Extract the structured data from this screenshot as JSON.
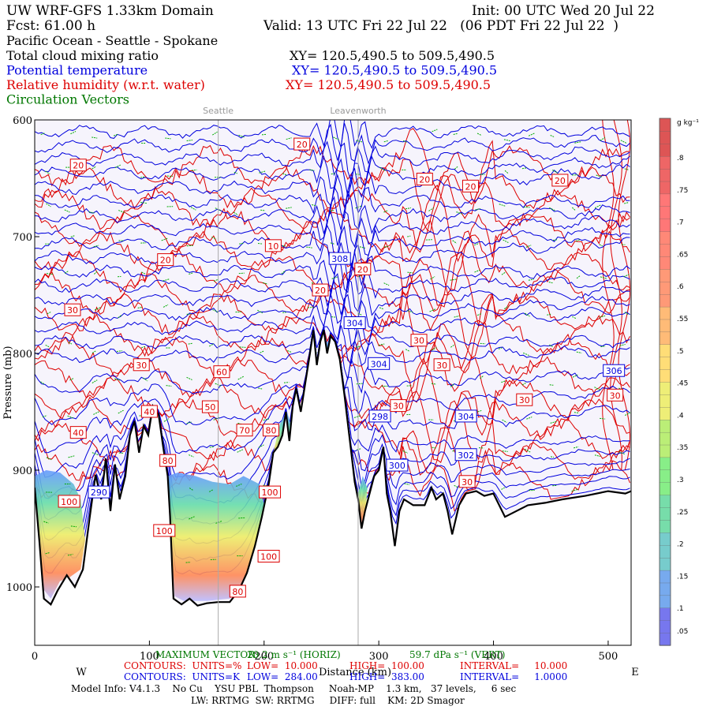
{
  "header": {
    "model": "UW WRF-GFS 1.33km Domain",
    "init": "Init: 00 UTC Wed 20 Jul 22",
    "fcst": "Fcst:   61.00 h",
    "valid": "Valid: 13 UTC Fri 22 Jul 22   (06 PDT Fri 22 Jul 22  )",
    "region": "Pacific Ocean - Seattle - Spokane",
    "fields": [
      {
        "name": "Total cloud mixing ratio",
        "xy": "XY= 120.5,490.5 to 509.5,490.5",
        "color": "#000000"
      },
      {
        "name": "Potential temperature",
        "xy": "XY= 120.5,490.5 to 509.5,490.5",
        "color": "#0000dd"
      },
      {
        "name": "Relative humidity (w.r.t. water)",
        "xy": "XY= 120.5,490.5 to 509.5,490.5",
        "color": "#dd0000"
      },
      {
        "name": "Circulation Vectors",
        "xy": "",
        "color": "#007700"
      }
    ]
  },
  "places": [
    {
      "name": "Seattle",
      "km": 160
    },
    {
      "name": "Leavenworth",
      "km": 282
    }
  ],
  "chart_data": {
    "type": "contour",
    "xlabel": "Distance (km)",
    "ylabel": "Pressure (mb)",
    "xlim": [
      0,
      520
    ],
    "ylim": [
      1050,
      600
    ],
    "x_ticks": [
      0,
      100,
      200,
      300,
      400,
      500
    ],
    "y_ticks": [
      600,
      700,
      800,
      900,
      1000
    ],
    "x_end_labels": {
      "left": "W",
      "right": "E"
    },
    "colorbar": {
      "unit": "g kg⁻¹",
      "ticks": [
        ".05",
        ".1",
        ".15",
        ".2",
        ".25",
        ".3",
        ".35",
        ".4",
        ".45",
        ".5",
        ".55",
        ".6",
        ".65",
        ".7",
        ".75",
        ".8"
      ]
    },
    "series": [
      {
        "name": "Total cloud mixing ratio",
        "color": "#ff8844"
      },
      {
        "name": "Potential temperature",
        "color": "#0000dd",
        "contour_labels": [
          {
            "v": "308",
            "x": 266,
            "p": 719
          },
          {
            "v": "304",
            "x": 279,
            "p": 774
          },
          {
            "v": "304",
            "x": 300,
            "p": 809
          },
          {
            "v": "298",
            "x": 301,
            "p": 854
          },
          {
            "v": "300",
            "x": 316,
            "p": 896
          },
          {
            "v": "302",
            "x": 376,
            "p": 887
          },
          {
            "v": "304",
            "x": 376,
            "p": 854
          },
          {
            "v": "306",
            "x": 505,
            "p": 815
          },
          {
            "v": "290",
            "x": 56,
            "p": 919
          }
        ]
      },
      {
        "name": "Relative humidity (w.r.t. water)",
        "color": "#dd0000",
        "contour_labels": [
          {
            "v": "20",
            "x": 233,
            "p": 621
          },
          {
            "v": "20",
            "x": 38,
            "p": 639
          },
          {
            "v": "20",
            "x": 340,
            "p": 651
          },
          {
            "v": "20",
            "x": 380,
            "p": 657
          },
          {
            "v": "20",
            "x": 458,
            "p": 652
          },
          {
            "v": "10",
            "x": 208,
            "p": 708
          },
          {
            "v": "20",
            "x": 114,
            "p": 720
          },
          {
            "v": "20",
            "x": 286,
            "p": 728
          },
          {
            "v": "20",
            "x": 249,
            "p": 746
          },
          {
            "v": "30",
            "x": 33,
            "p": 763
          },
          {
            "v": "30",
            "x": 335,
            "p": 789
          },
          {
            "v": "30",
            "x": 93,
            "p": 810
          },
          {
            "v": "60",
            "x": 163,
            "p": 816
          },
          {
            "v": "30",
            "x": 355,
            "p": 810
          },
          {
            "v": "30",
            "x": 317,
            "p": 845
          },
          {
            "v": "30",
            "x": 427,
            "p": 840
          },
          {
            "v": "30",
            "x": 506,
            "p": 836
          },
          {
            "v": "40",
            "x": 100,
            "p": 850
          },
          {
            "v": "50",
            "x": 153,
            "p": 846
          },
          {
            "v": "70",
            "x": 183,
            "p": 866
          },
          {
            "v": "80",
            "x": 206,
            "p": 866
          },
          {
            "v": "40",
            "x": 38,
            "p": 868
          },
          {
            "v": "80",
            "x": 116,
            "p": 892
          },
          {
            "v": "100",
            "x": 30,
            "p": 927
          },
          {
            "v": "100",
            "x": 205,
            "p": 919
          },
          {
            "v": "100",
            "x": 113,
            "p": 952
          },
          {
            "v": "100",
            "x": 204,
            "p": 974
          },
          {
            "v": "30",
            "x": 377,
            "p": 910
          },
          {
            "v": "80",
            "x": 177,
            "p": 1004
          }
        ]
      },
      {
        "name": "Circulation Vectors",
        "color": "#007700"
      }
    ]
  },
  "footer": {
    "max_vector_label": "MAXIMUM VECTOR:",
    "max_vector_h": "20.2 m s⁻¹ (HORIZ)",
    "max_vector_v": "59.7 dPa s⁻¹ (VERT)",
    "rh_contours": {
      "units": "CONTOURS:  UNITS=%",
      "low": "LOW=  10.000",
      "high": "HIGH=  100.00",
      "interval": "INTERVAL=     10.000"
    },
    "theta_contours": {
      "units": "CONTOURS:  UNITS=K",
      "low": "LOW=  284.00",
      "high": "HIGH=  383.00",
      "interval": "INTERVAL=     1.0000"
    },
    "model_info": "Model Info: V4.1.3    No Cu    YSU PBL  Thompson     Noah-MP    1.3 km,   37 levels,     6 sec",
    "model_info2": "LW: RRTMG  SW: RRTMG     DIFF: full    KM: 2D Smagor"
  }
}
